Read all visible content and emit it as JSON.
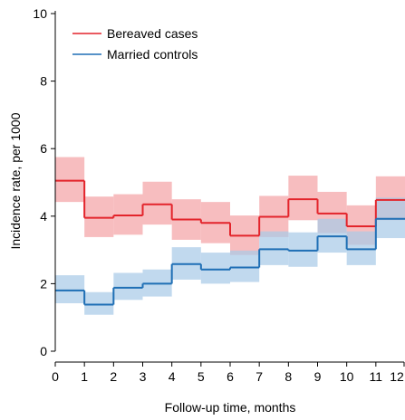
{
  "chart_data": {
    "type": "line",
    "step": true,
    "xlabel": "Follow-up time, months",
    "ylabel": "Incidence rate, per 1000",
    "xlim": [
      0,
      12
    ],
    "ylim": [
      0,
      10
    ],
    "x_ticks": [
      0,
      1,
      2,
      3,
      4,
      5,
      6,
      7,
      8,
      9,
      10,
      11,
      12
    ],
    "y_ticks": [
      0,
      2,
      4,
      6,
      8,
      10
    ],
    "grid": false,
    "legend_position": "top-left",
    "series": [
      {
        "name": "Bereaved cases",
        "color": "#e3242b",
        "band_color": "#f4a3a6",
        "x_start": [
          0,
          1,
          2,
          3,
          4,
          5,
          6,
          7,
          8,
          9,
          10,
          11
        ],
        "values": [
          5.05,
          3.95,
          4.02,
          4.35,
          3.9,
          3.8,
          3.42,
          3.98,
          4.5,
          4.08,
          3.7,
          4.48
        ],
        "ci_lower": [
          4.42,
          3.38,
          3.45,
          3.75,
          3.3,
          3.2,
          2.85,
          3.38,
          3.88,
          3.5,
          3.15,
          3.88
        ],
        "ci_upper": [
          5.75,
          4.58,
          4.65,
          5.02,
          4.5,
          4.42,
          4.02,
          4.6,
          5.2,
          4.72,
          4.32,
          5.18
        ]
      },
      {
        "name": "Married controls",
        "color": "#1f6fb5",
        "band_color": "#a9cbe8",
        "x_start": [
          0,
          1,
          2,
          3,
          4,
          5,
          6,
          7,
          8,
          9,
          10,
          11
        ],
        "values": [
          1.8,
          1.38,
          1.88,
          2.0,
          2.58,
          2.42,
          2.48,
          3.02,
          2.98,
          3.4,
          3.02,
          3.92
        ],
        "ci_lower": [
          1.42,
          1.08,
          1.52,
          1.62,
          2.12,
          2.0,
          2.05,
          2.55,
          2.5,
          2.92,
          2.55,
          3.35
        ],
        "ci_upper": [
          2.25,
          1.75,
          2.32,
          2.42,
          3.08,
          2.92,
          2.98,
          3.55,
          3.52,
          3.92,
          3.55,
          4.55
        ]
      }
    ]
  }
}
